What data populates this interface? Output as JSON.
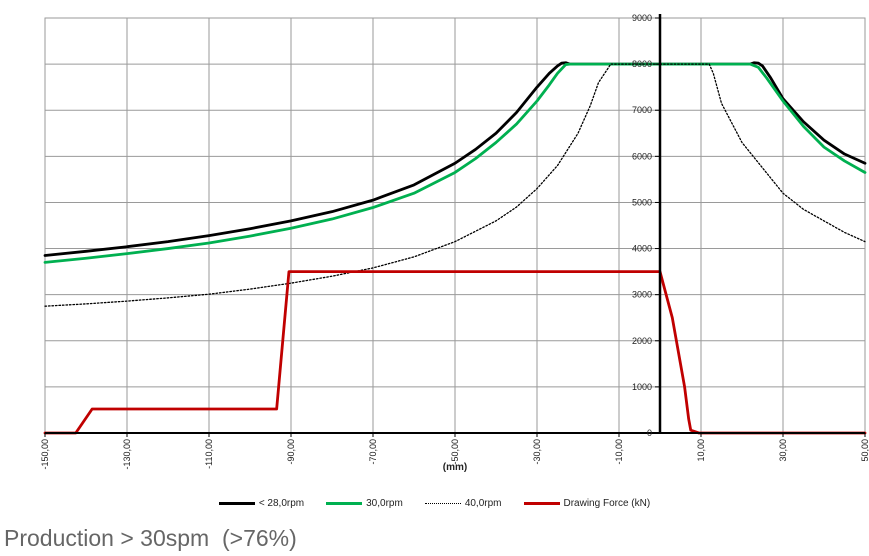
{
  "chart_data": {
    "type": "line",
    "xlabel": "(mm)",
    "ylabel": "",
    "xlim": [
      -150,
      50
    ],
    "ylim": [
      0,
      9000
    ],
    "x_ticks": [
      -150,
      -130,
      -110,
      -90,
      -70,
      -50,
      -30,
      -10,
      10,
      30,
      50
    ],
    "x_tick_labels": [
      "-150,00",
      "-130,00",
      "-110,00",
      "-90,00",
      "-70,00",
      "-50,00",
      "-30,00",
      "-10,00",
      "10,00",
      "30,00",
      "50,00"
    ],
    "y_ticks": [
      0,
      1000,
      2000,
      3000,
      4000,
      5000,
      6000,
      7000,
      8000,
      9000
    ],
    "y_tick_labels": [
      "0",
      "1000",
      "2000",
      "3000",
      "4000",
      "5000",
      "6000",
      "7000",
      "8000",
      "9000"
    ],
    "y_axis_at_x": 0,
    "grid": true,
    "legend_position": "bottom",
    "series": [
      {
        "name": "< 28,0rpm",
        "color": "#000000",
        "dash": "solid",
        "x": [
          -150,
          -140,
          -130,
          -120,
          -110,
          -100,
          -90,
          -80,
          -70,
          -60,
          -50,
          -45,
          -40,
          -35,
          -30,
          -27,
          -25,
          -24,
          -23,
          -22,
          -20,
          0,
          20,
          22,
          23,
          24,
          25,
          27,
          30,
          35,
          40,
          45,
          50
        ],
        "y": [
          3850,
          3940,
          4040,
          4150,
          4280,
          4430,
          4600,
          4800,
          5050,
          5380,
          5850,
          6150,
          6500,
          6950,
          7500,
          7800,
          7960,
          8020,
          8030,
          8000,
          8000,
          8000,
          8000,
          8000,
          8030,
          8020,
          7960,
          7700,
          7250,
          6750,
          6350,
          6050,
          5850
        ]
      },
      {
        "name": "30,0rpm",
        "color": "#00b050",
        "dash": "solid",
        "x": [
          -150,
          -140,
          -130,
          -120,
          -110,
          -100,
          -90,
          -80,
          -70,
          -60,
          -50,
          -45,
          -40,
          -35,
          -30,
          -27,
          -25,
          -23,
          -22,
          -20,
          0,
          20,
          22,
          24,
          26,
          28,
          30,
          35,
          40,
          45,
          50
        ],
        "y": [
          3700,
          3790,
          3890,
          4000,
          4120,
          4270,
          4440,
          4640,
          4890,
          5200,
          5650,
          5950,
          6300,
          6700,
          7200,
          7550,
          7800,
          7990,
          8000,
          8000,
          8000,
          8000,
          8000,
          7930,
          7700,
          7450,
          7200,
          6650,
          6200,
          5900,
          5650
        ]
      },
      {
        "name": "40,0rpm",
        "color": "#000000",
        "dash": "dotted",
        "x": [
          -150,
          -140,
          -130,
          -120,
          -110,
          -100,
          -90,
          -80,
          -70,
          -60,
          -50,
          -40,
          -35,
          -30,
          -25,
          -20,
          -17,
          -15,
          -12,
          0,
          12,
          13,
          15,
          20,
          25,
          30,
          35,
          40,
          45,
          50
        ],
        "y": [
          2750,
          2800,
          2860,
          2930,
          3010,
          3120,
          3250,
          3400,
          3580,
          3820,
          4150,
          4600,
          4900,
          5300,
          5800,
          6500,
          7100,
          7600,
          8000,
          8000,
          8000,
          7800,
          7150,
          6300,
          5750,
          5200,
          4850,
          4600,
          4350,
          4150
        ]
      },
      {
        "name": "Drawing Force (kN)",
        "color": "#c00000",
        "dash": "solid",
        "x": [
          -150,
          -142.5,
          -138.5,
          -93.5,
          -90.5,
          0,
          3,
          6,
          7,
          7.5,
          9.5,
          50
        ],
        "y": [
          0,
          0,
          520,
          520,
          3500,
          3500,
          2500,
          1000,
          300,
          60,
          0,
          0
        ]
      }
    ]
  },
  "caption": "Production > 30spm  (>76%)"
}
